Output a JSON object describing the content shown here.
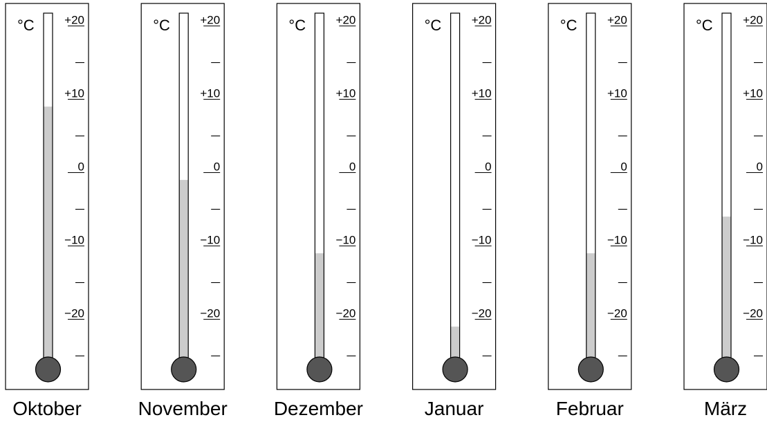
{
  "unit": "°C",
  "scale": {
    "min": -30,
    "max": 20,
    "labeled_ticks": [
      {
        "value": 20,
        "label": "+20"
      },
      {
        "value": 10,
        "label": "+10"
      },
      {
        "value": 0,
        "label": "0"
      },
      {
        "value": -10,
        "label": "−10"
      },
      {
        "value": -20,
        "label": "−20"
      }
    ],
    "minor_ticks": [
      15,
      5,
      -5,
      -15,
      -25
    ]
  },
  "colors": {
    "liquid": "#cccccc",
    "bulb": "#555555",
    "outline": "#000000"
  },
  "thermometers": [
    {
      "month": "Oktober",
      "temperature": 9
    },
    {
      "month": "November",
      "temperature": -1
    },
    {
      "month": "Dezember",
      "temperature": -11
    },
    {
      "month": "Januar",
      "temperature": -21
    },
    {
      "month": "Februar",
      "temperature": -11
    },
    {
      "month": "März",
      "temperature": -6
    }
  ]
}
